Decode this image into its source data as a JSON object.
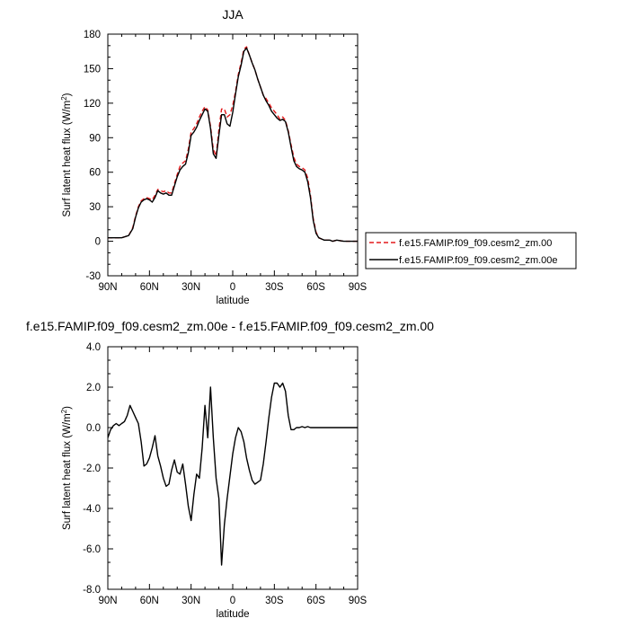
{
  "colors": {
    "series_dashed": "#e41a1c",
    "series_solid": "#000000",
    "axis": "#000000"
  },
  "chart_data": [
    {
      "type": "line",
      "title": "JJA",
      "xlabel": "latitude",
      "ylabel_main": "Surf latent heat flux (W/m",
      "ylabel_sup": "2",
      "ylabel_close": ")",
      "xlim": [
        90,
        -90
      ],
      "ylim": [
        -30,
        180
      ],
      "xticks": [
        90,
        60,
        30,
        0,
        -30,
        -60,
        -90
      ],
      "xtick_labels": [
        "90N",
        "60N",
        "30N",
        "0",
        "30S",
        "60S",
        "90S"
      ],
      "yticks": [
        -30,
        0,
        30,
        60,
        90,
        120,
        150,
        180
      ],
      "ytick_labels": [
        "-30",
        "0",
        "30",
        "60",
        "90",
        "120",
        "150",
        "180"
      ],
      "legend_position": "right",
      "series": [
        {
          "name": "f.e15.FAMIP.f09_f09.cesm2_zm.00",
          "style": "dashed",
          "color": "#e41a1c",
          "x": [
            90,
            85,
            80,
            75,
            72,
            70,
            68,
            66,
            64,
            62,
            60,
            58,
            56,
            54,
            52,
            50,
            48,
            46,
            44,
            42,
            40,
            38,
            36,
            34,
            32,
            30,
            28,
            26,
            24,
            22,
            20,
            18,
            16,
            14,
            12,
            10,
            8,
            6,
            4,
            2,
            0,
            -2,
            -4,
            -6,
            -8,
            -10,
            -12,
            -14,
            -16,
            -18,
            -20,
            -22,
            -24,
            -26,
            -28,
            -30,
            -32,
            -34,
            -36,
            -38,
            -40,
            -42,
            -44,
            -46,
            -48,
            -50,
            -52,
            -54,
            -56,
            -58,
            -60,
            -62,
            -64,
            -66,
            -68,
            -70,
            -72,
            -75,
            -80,
            -85,
            -90
          ],
          "y": [
            3,
            3,
            3,
            5,
            12,
            22,
            30,
            35,
            37,
            38,
            37,
            36,
            40,
            45,
            44,
            43,
            44,
            42,
            42,
            50,
            58,
            65,
            68,
            70,
            80,
            95,
            98,
            102,
            108,
            113,
            117,
            114,
            100,
            80,
            74,
            97,
            115,
            115,
            108,
            110,
            118,
            130,
            145,
            155,
            167,
            169,
            162,
            155,
            149,
            141,
            134,
            127,
            124,
            120,
            116,
            113,
            110,
            106,
            108,
            105,
            96,
            84,
            73,
            67,
            65,
            64,
            62,
            55,
            40,
            20,
            8,
            3,
            2,
            1,
            1,
            1,
            0,
            1,
            0,
            0,
            0
          ]
        },
        {
          "name": "f.e15.FAMIP.f09_f09.cesm2_zm.00e",
          "style": "solid",
          "color": "#000000",
          "x": [
            90,
            85,
            80,
            75,
            72,
            70,
            68,
            66,
            64,
            62,
            60,
            58,
            56,
            54,
            52,
            50,
            48,
            46,
            44,
            42,
            40,
            38,
            36,
            34,
            32,
            30,
            28,
            26,
            24,
            22,
            20,
            18,
            16,
            14,
            12,
            10,
            8,
            6,
            4,
            2,
            0,
            -2,
            -4,
            -6,
            -8,
            -10,
            -12,
            -14,
            -16,
            -18,
            -20,
            -22,
            -24,
            -26,
            -28,
            -30,
            -32,
            -34,
            -36,
            -38,
            -40,
            -42,
            -44,
            -46,
            -48,
            -50,
            -52,
            -54,
            -56,
            -58,
            -60,
            -62,
            -64,
            -66,
            -68,
            -70,
            -72,
            -75,
            -80,
            -85,
            -90
          ],
          "y": [
            3,
            3,
            3,
            5,
            11,
            21,
            29,
            34,
            36,
            37,
            36,
            34,
            38,
            44,
            42,
            41,
            42,
            40,
            40,
            48,
            56,
            62,
            65,
            67,
            77,
            92,
            95,
            99,
            105,
            110,
            115,
            113,
            98,
            76,
            72,
            92,
            110,
            110,
            102,
            100,
            112,
            128,
            143,
            153,
            165,
            168,
            162,
            155,
            149,
            141,
            134,
            127,
            122,
            118,
            113,
            110,
            107,
            105,
            106,
            104,
            95,
            82,
            70,
            65,
            63,
            62,
            60,
            52,
            38,
            18,
            7,
            3,
            2,
            1,
            1,
            1,
            0,
            1,
            0,
            0,
            0
          ]
        }
      ]
    },
    {
      "type": "line",
      "title": "f.e15.FAMIP.f09_f09.cesm2_zm.00e - f.e15.FAMIP.f09_f09.cesm2_zm.00",
      "xlabel": "latitude",
      "ylabel_main": "Surf latent heat flux (W/m",
      "ylabel_sup": "2",
      "ylabel_close": ")",
      "xlim": [
        90,
        -90
      ],
      "ylim": [
        -8,
        4
      ],
      "xticks": [
        90,
        60,
        30,
        0,
        -30,
        -60,
        -90
      ],
      "xtick_labels": [
        "90N",
        "60N",
        "30N",
        "0",
        "30S",
        "60S",
        "90S"
      ],
      "yticks": [
        -8,
        -6,
        -4,
        -2,
        0,
        2,
        4
      ],
      "ytick_labels": [
        "-8.0",
        "-6.0",
        "-4.0",
        "-2.0",
        "0.0",
        "2.0",
        "4.0"
      ],
      "series": [
        {
          "style": "solid",
          "color": "#000000",
          "x": [
            90,
            88,
            86,
            84,
            82,
            80,
            78,
            76,
            74,
            72,
            70,
            68,
            66,
            64,
            62,
            60,
            58,
            56,
            54,
            52,
            50,
            48,
            46,
            44,
            42,
            40,
            38,
            36,
            34,
            32,
            30,
            28,
            26,
            24,
            22,
            20,
            18,
            16,
            14,
            12,
            10,
            8,
            6,
            4,
            2,
            0,
            -2,
            -4,
            -6,
            -8,
            -10,
            -12,
            -14,
            -16,
            -18,
            -20,
            -22,
            -24,
            -26,
            -28,
            -30,
            -32,
            -34,
            -36,
            -38,
            -40,
            -42,
            -44,
            -46,
            -48,
            -50,
            -52,
            -54,
            -56,
            -58,
            -60,
            -62,
            -64,
            -66,
            -68,
            -70,
            -72,
            -74,
            -76,
            -78,
            -80,
            -82,
            -84,
            -86,
            -88,
            -90
          ],
          "y": [
            -0.5,
            -0.1,
            0.1,
            0.2,
            0.1,
            0.2,
            0.3,
            0.6,
            1.1,
            0.8,
            0.5,
            0.2,
            -0.7,
            -1.9,
            -1.8,
            -1.5,
            -1.0,
            -0.4,
            -1.4,
            -1.9,
            -2.5,
            -2.9,
            -2.8,
            -2.1,
            -1.6,
            -2.2,
            -2.3,
            -1.8,
            -2.8,
            -3.9,
            -4.6,
            -3.3,
            -2.3,
            -2.5,
            -1.0,
            1.1,
            -0.5,
            2.0,
            -0.5,
            -2.5,
            -3.5,
            -6.8,
            -4.8,
            -3.5,
            -2.4,
            -1.3,
            -0.5,
            0.0,
            -0.2,
            -0.7,
            -1.5,
            -2.1,
            -2.6,
            -2.8,
            -2.7,
            -2.6,
            -1.8,
            -0.7,
            0.5,
            1.5,
            2.2,
            2.2,
            2.0,
            2.2,
            1.8,
            0.6,
            -0.1,
            -0.1,
            0.0,
            0.0,
            0.05,
            0.0,
            0.05,
            0.0,
            0.0,
            0.0,
            0.0,
            0.0,
            0.0,
            0.0,
            0.0,
            0.0,
            0.0,
            0.0,
            0.0,
            0.0,
            0.0,
            0.0,
            0.0,
            0.0,
            0.0
          ]
        }
      ]
    }
  ]
}
